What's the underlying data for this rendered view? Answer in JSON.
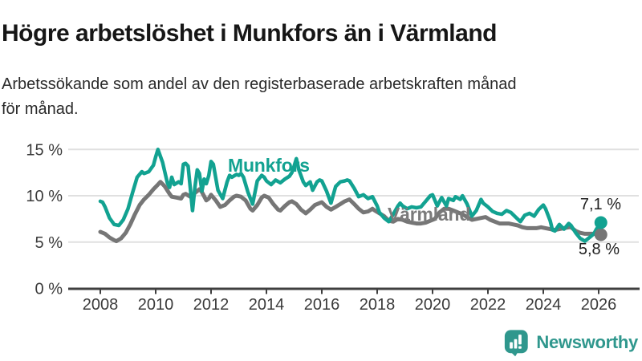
{
  "header": {
    "title": "Högre arbetslöshet i Munkfors än i Värmland",
    "subtitle": "Arbetssökande som andel av den registerbaserade arbetskraften månad\nför månad."
  },
  "footer": {
    "brand": "Newsworthy"
  },
  "colors": {
    "munkfors": "#12a291",
    "varmland": "#767676",
    "brand_teal": "#2f978d",
    "gridline": "#e0e0e0",
    "axis": "#3f3f3f",
    "axis_text": "#3a3a3a"
  },
  "chart_data": {
    "type": "line",
    "title": "Högre arbetslöshet i Munkfors än i Värmland",
    "subtitle": "Arbetssökande som andel av den registerbaserade arbetskraften månad för månad.",
    "ylabel": "",
    "xlabel": "",
    "unit": "%",
    "grid": "horizontal",
    "legend_position": "inline-labels",
    "x_axis": {
      "range": [
        2007.85,
        2026.5
      ],
      "ticks": [
        {
          "label": "2008",
          "value": 2008
        },
        {
          "label": "2010",
          "value": 2010
        },
        {
          "label": "2012",
          "value": 2012
        },
        {
          "label": "2014",
          "value": 2014
        },
        {
          "label": "2016",
          "value": 2016
        },
        {
          "label": "2018",
          "value": 2018
        },
        {
          "label": "2020",
          "value": 2020
        },
        {
          "label": "2022",
          "value": 2022
        },
        {
          "label": "2024",
          "value": 2024
        },
        {
          "label": "2026",
          "value": 2026
        }
      ]
    },
    "y_axis": {
      "range": [
        0,
        15
      ],
      "ticks": [
        {
          "label": "0 %",
          "value": 0
        },
        {
          "label": "5 %",
          "value": 5
        },
        {
          "label": "10 %",
          "value": 10
        },
        {
          "label": "15 %",
          "value": 15
        }
      ]
    },
    "series": [
      {
        "name": "Munkfors",
        "color": "#12a291",
        "end_label": "7,1 %",
        "end_value": 7.1,
        "points": [
          [
            2008.0,
            9.4
          ],
          [
            2008.08,
            9.3
          ],
          [
            2008.17,
            8.8
          ],
          [
            2008.33,
            7.6
          ],
          [
            2008.5,
            6.9
          ],
          [
            2008.67,
            6.8
          ],
          [
            2008.83,
            7.4
          ],
          [
            2009.0,
            8.6
          ],
          [
            2009.17,
            10.4
          ],
          [
            2009.33,
            12.0
          ],
          [
            2009.5,
            12.6
          ],
          [
            2009.58,
            12.4
          ],
          [
            2009.75,
            12.6
          ],
          [
            2009.92,
            13.3
          ],
          [
            2010.0,
            14.2
          ],
          [
            2010.08,
            15.0
          ],
          [
            2010.25,
            13.6
          ],
          [
            2010.42,
            11.4
          ],
          [
            2010.5,
            10.9
          ],
          [
            2010.58,
            12.0
          ],
          [
            2010.67,
            11.2
          ],
          [
            2010.83,
            11.5
          ],
          [
            2010.92,
            11.3
          ],
          [
            2011.0,
            13.4
          ],
          [
            2011.08,
            13.5
          ],
          [
            2011.17,
            13.2
          ],
          [
            2011.33,
            8.4
          ],
          [
            2011.42,
            11.0
          ],
          [
            2011.5,
            12.8
          ],
          [
            2011.58,
            12.4
          ],
          [
            2011.67,
            10.5
          ],
          [
            2011.75,
            11.8
          ],
          [
            2011.83,
            11.3
          ],
          [
            2011.92,
            12.2
          ],
          [
            2012.0,
            13.7
          ],
          [
            2012.08,
            13.4
          ],
          [
            2012.25,
            10.6
          ],
          [
            2012.42,
            9.7
          ],
          [
            2012.58,
            11.5
          ],
          [
            2012.67,
            12.2
          ],
          [
            2012.75,
            12.0
          ],
          [
            2012.92,
            12.3
          ],
          [
            2013.0,
            12.2
          ],
          [
            2013.08,
            12.4
          ],
          [
            2013.17,
            12.0
          ],
          [
            2013.33,
            10.4
          ],
          [
            2013.5,
            9.1
          ],
          [
            2013.67,
            11.6
          ],
          [
            2013.83,
            12.2
          ],
          [
            2013.92,
            12.0
          ],
          [
            2014.0,
            11.6
          ],
          [
            2014.17,
            11.2
          ],
          [
            2014.33,
            11.7
          ],
          [
            2014.5,
            11.4
          ],
          [
            2014.67,
            11.8
          ],
          [
            2014.83,
            12.1
          ],
          [
            2014.92,
            12.5
          ],
          [
            2015.0,
            13.2
          ],
          [
            2015.08,
            14.0
          ],
          [
            2015.17,
            12.8
          ],
          [
            2015.33,
            11.5
          ],
          [
            2015.42,
            11.1
          ],
          [
            2015.58,
            11.5
          ],
          [
            2015.67,
            10.6
          ],
          [
            2015.83,
            11.5
          ],
          [
            2015.92,
            11.7
          ],
          [
            2016.0,
            11.6
          ],
          [
            2016.17,
            10.5
          ],
          [
            2016.33,
            9.2
          ],
          [
            2016.5,
            11.0
          ],
          [
            2016.67,
            11.5
          ],
          [
            2016.83,
            11.6
          ],
          [
            2016.92,
            11.7
          ],
          [
            2017.0,
            11.6
          ],
          [
            2017.17,
            10.8
          ],
          [
            2017.33,
            9.9
          ],
          [
            2017.5,
            10.1
          ],
          [
            2017.67,
            9.7
          ],
          [
            2017.83,
            9.9
          ],
          [
            2018.0,
            8.9
          ],
          [
            2018.08,
            8.2
          ],
          [
            2018.25,
            7.6
          ],
          [
            2018.42,
            7.2
          ],
          [
            2018.58,
            8.0
          ],
          [
            2018.75,
            8.9
          ],
          [
            2018.83,
            9.2
          ],
          [
            2018.92,
            8.9
          ],
          [
            2019.08,
            8.6
          ],
          [
            2019.25,
            8.8
          ],
          [
            2019.42,
            8.7
          ],
          [
            2019.58,
            8.8
          ],
          [
            2019.75,
            9.4
          ],
          [
            2019.92,
            10.0
          ],
          [
            2020.0,
            10.1
          ],
          [
            2020.17,
            8.9
          ],
          [
            2020.33,
            9.8
          ],
          [
            2020.5,
            8.9
          ],
          [
            2020.58,
            9.7
          ],
          [
            2020.75,
            9.5
          ],
          [
            2020.83,
            9.9
          ],
          [
            2021.0,
            9.6
          ],
          [
            2021.08,
            10.0
          ],
          [
            2021.25,
            9.1
          ],
          [
            2021.42,
            7.8
          ],
          [
            2021.58,
            8.4
          ],
          [
            2021.75,
            9.6
          ],
          [
            2021.83,
            9.2
          ],
          [
            2022.0,
            8.8
          ],
          [
            2022.17,
            8.3
          ],
          [
            2022.33,
            8.1
          ],
          [
            2022.5,
            8.0
          ],
          [
            2022.67,
            8.4
          ],
          [
            2022.83,
            8.2
          ],
          [
            2023.0,
            7.7
          ],
          [
            2023.17,
            7.2
          ],
          [
            2023.33,
            7.9
          ],
          [
            2023.5,
            8.1
          ],
          [
            2023.67,
            7.8
          ],
          [
            2023.83,
            8.5
          ],
          [
            2024.0,
            9.0
          ],
          [
            2024.08,
            8.6
          ],
          [
            2024.25,
            7.3
          ],
          [
            2024.33,
            6.3
          ],
          [
            2024.42,
            6.2
          ],
          [
            2024.58,
            6.9
          ],
          [
            2024.75,
            6.4
          ],
          [
            2024.92,
            7.0
          ],
          [
            2025.0,
            6.8
          ],
          [
            2025.17,
            6.0
          ],
          [
            2025.33,
            5.4
          ],
          [
            2025.5,
            5.1
          ],
          [
            2025.67,
            5.5
          ],
          [
            2025.83,
            5.9
          ],
          [
            2025.92,
            6.4
          ],
          [
            2026.08,
            7.1
          ]
        ]
      },
      {
        "name": "Värmland",
        "color": "#767676",
        "end_label": "5,8 %",
        "end_value": 5.8,
        "points": [
          [
            2008.0,
            6.1
          ],
          [
            2008.17,
            5.9
          ],
          [
            2008.33,
            5.5
          ],
          [
            2008.5,
            5.2
          ],
          [
            2008.58,
            5.1
          ],
          [
            2008.75,
            5.4
          ],
          [
            2008.92,
            6.0
          ],
          [
            2009.08,
            6.9
          ],
          [
            2009.25,
            8.0
          ],
          [
            2009.42,
            9.0
          ],
          [
            2009.58,
            9.6
          ],
          [
            2009.75,
            10.1
          ],
          [
            2009.92,
            10.7
          ],
          [
            2010.08,
            11.2
          ],
          [
            2010.17,
            11.5
          ],
          [
            2010.33,
            11.0
          ],
          [
            2010.5,
            10.2
          ],
          [
            2010.58,
            9.9
          ],
          [
            2010.75,
            9.8
          ],
          [
            2010.92,
            9.7
          ],
          [
            2011.0,
            10.1
          ],
          [
            2011.08,
            10.2
          ],
          [
            2011.25,
            9.9
          ],
          [
            2011.42,
            10.3
          ],
          [
            2011.58,
            10.7
          ],
          [
            2011.67,
            10.4
          ],
          [
            2011.83,
            9.5
          ],
          [
            2011.92,
            9.7
          ],
          [
            2012.0,
            10.1
          ],
          [
            2012.17,
            9.5
          ],
          [
            2012.33,
            8.8
          ],
          [
            2012.5,
            9.0
          ],
          [
            2012.67,
            9.5
          ],
          [
            2012.83,
            9.9
          ],
          [
            2012.92,
            10.0
          ],
          [
            2013.08,
            9.9
          ],
          [
            2013.25,
            9.5
          ],
          [
            2013.42,
            8.6
          ],
          [
            2013.5,
            8.4
          ],
          [
            2013.67,
            9.0
          ],
          [
            2013.83,
            9.8
          ],
          [
            2013.92,
            10.0
          ],
          [
            2014.08,
            9.8
          ],
          [
            2014.25,
            9.1
          ],
          [
            2014.42,
            8.5
          ],
          [
            2014.5,
            8.4
          ],
          [
            2014.67,
            8.9
          ],
          [
            2014.83,
            9.3
          ],
          [
            2014.92,
            9.4
          ],
          [
            2015.08,
            9.1
          ],
          [
            2015.25,
            8.5
          ],
          [
            2015.42,
            8.1
          ],
          [
            2015.58,
            8.5
          ],
          [
            2015.75,
            9.0
          ],
          [
            2015.92,
            9.2
          ],
          [
            2016.0,
            9.3
          ],
          [
            2016.17,
            8.8
          ],
          [
            2016.33,
            8.5
          ],
          [
            2016.5,
            8.8
          ],
          [
            2016.67,
            9.1
          ],
          [
            2016.83,
            9.4
          ],
          [
            2017.0,
            9.6
          ],
          [
            2017.17,
            9.1
          ],
          [
            2017.33,
            8.6
          ],
          [
            2017.5,
            8.2
          ],
          [
            2017.67,
            8.3
          ],
          [
            2017.83,
            8.6
          ],
          [
            2017.92,
            8.4
          ],
          [
            2018.08,
            8.1
          ],
          [
            2018.25,
            7.8
          ],
          [
            2018.42,
            7.3
          ],
          [
            2018.58,
            7.2
          ],
          [
            2018.75,
            7.5
          ],
          [
            2018.92,
            7.4
          ],
          [
            2019.08,
            7.2
          ],
          [
            2019.25,
            7.1
          ],
          [
            2019.42,
            7.0
          ],
          [
            2019.58,
            7.0
          ],
          [
            2019.75,
            7.1
          ],
          [
            2019.92,
            7.3
          ],
          [
            2020.08,
            7.5
          ],
          [
            2020.25,
            8.2
          ],
          [
            2020.42,
            8.6
          ],
          [
            2020.58,
            8.6
          ],
          [
            2020.75,
            8.4
          ],
          [
            2020.92,
            8.2
          ],
          [
            2021.08,
            8.0
          ],
          [
            2021.25,
            7.7
          ],
          [
            2021.42,
            7.4
          ],
          [
            2021.58,
            7.5
          ],
          [
            2021.75,
            7.6
          ],
          [
            2021.92,
            7.7
          ],
          [
            2022.08,
            7.4
          ],
          [
            2022.25,
            7.2
          ],
          [
            2022.42,
            7.0
          ],
          [
            2022.58,
            7.0
          ],
          [
            2022.75,
            7.0
          ],
          [
            2022.92,
            6.9
          ],
          [
            2023.08,
            6.8
          ],
          [
            2023.25,
            6.6
          ],
          [
            2023.42,
            6.5
          ],
          [
            2023.58,
            6.5
          ],
          [
            2023.75,
            6.5
          ],
          [
            2023.92,
            6.6
          ],
          [
            2024.08,
            6.5
          ],
          [
            2024.25,
            6.4
          ],
          [
            2024.42,
            6.3
          ],
          [
            2024.58,
            6.4
          ],
          [
            2024.75,
            6.5
          ],
          [
            2024.92,
            6.6
          ],
          [
            2025.0,
            6.6
          ],
          [
            2025.17,
            6.2
          ],
          [
            2025.33,
            6.0
          ],
          [
            2025.5,
            5.9
          ],
          [
            2025.67,
            5.9
          ],
          [
            2025.83,
            5.9
          ],
          [
            2026.08,
            5.8
          ]
        ]
      }
    ]
  }
}
